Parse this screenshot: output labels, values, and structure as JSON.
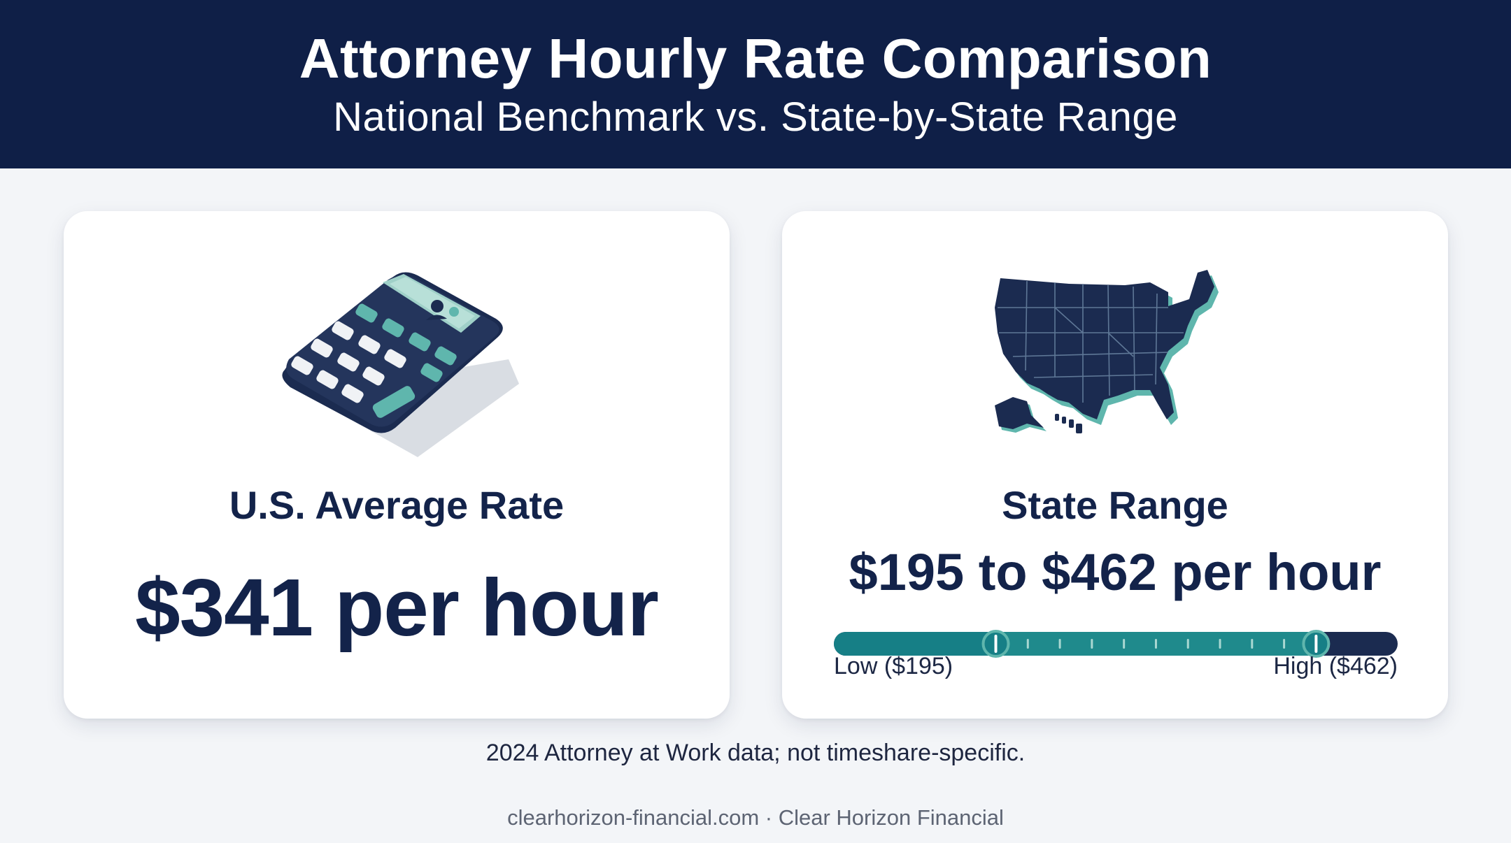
{
  "header": {
    "title": "Attorney Hourly Rate Comparison",
    "subtitle": "National Benchmark vs. State-by-State Range"
  },
  "national_card": {
    "icon": "calculator-icon",
    "heading": "U.S. Average Rate",
    "value": "$341 per hour"
  },
  "state_card": {
    "icon": "us-map-icon",
    "heading": "State Range",
    "value": "$195 to $462 per hour",
    "range_slider": {
      "low": 195,
      "high": 462,
      "low_label": "Low ($195)",
      "high_label": "High ($462)"
    }
  },
  "source_note": "2024 Attorney at Work data; not timeshare-specific.",
  "footer": "clearhorizon-financial.com · Clear Horizon Financial",
  "colors": {
    "navy": "#0f1f47",
    "teal": "#167f86",
    "teal_light": "#5fb6ad",
    "background": "#f3f5f8"
  }
}
